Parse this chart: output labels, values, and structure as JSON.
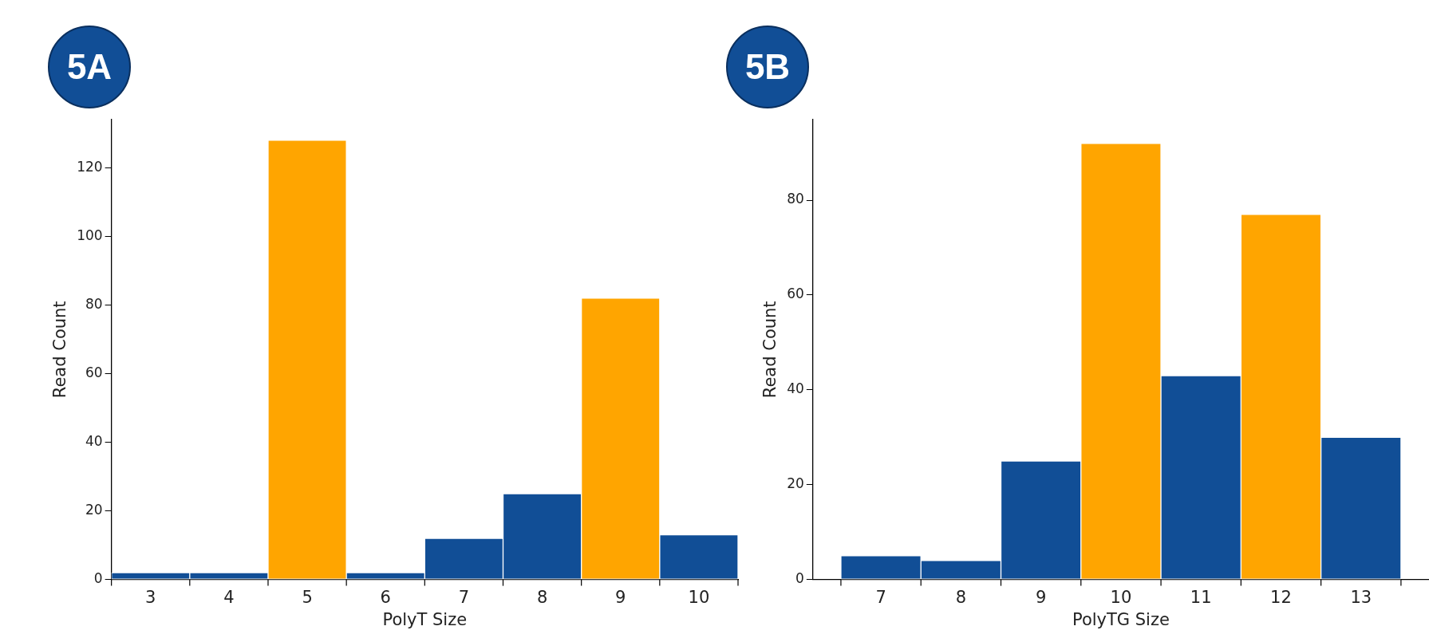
{
  "chart_data": [
    {
      "type": "histogram",
      "title": "5A",
      "xlabel": "PolyT Size",
      "ylabel": "Read Count",
      "bins": [
        2.5,
        3.5,
        4.5,
        5.5,
        6.5,
        7.5,
        8.5,
        9.5,
        10.5
      ],
      "values": [
        2,
        2,
        128,
        2,
        12,
        25,
        82,
        13
      ],
      "colors": [
        "#114e96",
        "#114e96",
        "#ffa500",
        "#114e96",
        "#114e96",
        "#114e96",
        "#ffa500",
        "#114e96"
      ],
      "xlim": [
        2.5,
        10.5
      ],
      "xticks": [
        {
          "value": 2.5,
          "label": null
        },
        3,
        {
          "value": 3.5,
          "label": null
        },
        4,
        {
          "value": 4.5,
          "label": null
        },
        5,
        {
          "value": 5.5,
          "label": null
        },
        6,
        {
          "value": 6.5,
          "label": null
        },
        7,
        {
          "value": 7.5,
          "label": null
        },
        8,
        {
          "value": 8.5,
          "label": null
        },
        9,
        {
          "value": 9.5,
          "label": null
        },
        10,
        {
          "value": 10.5,
          "label": null
        }
      ],
      "ylim": [
        0,
        134
      ],
      "yticks": [
        0,
        20,
        40,
        60,
        80,
        100,
        120
      ]
    },
    {
      "type": "histogram",
      "title": "5B",
      "xlabel": "PolyTG Size",
      "ylabel": "Read Count",
      "bins": [
        6.5,
        7.5,
        8.5,
        9.5,
        10.5,
        11.5,
        12.5,
        13.5
      ],
      "values": [
        5,
        4,
        25,
        92,
        43,
        77,
        30
      ],
      "colors": [
        "#114e96",
        "#114e96",
        "#114e96",
        "#ffa500",
        "#114e96",
        "#ffa500",
        "#114e96"
      ],
      "xlim": [
        6.15,
        13.85
      ],
      "xticks": [
        {
          "value": 6.5,
          "label": null
        },
        7,
        {
          "value": 7.5,
          "label": null
        },
        8,
        {
          "value": 8.5,
          "label": null
        },
        9,
        {
          "value": 9.5,
          "label": null
        },
        10,
        {
          "value": 10.5,
          "label": null
        },
        11,
        {
          "value": 11.5,
          "label": null
        },
        12,
        {
          "value": 12.5,
          "label": null
        },
        13,
        {
          "value": 13.5,
          "label": null
        }
      ],
      "ylim": [
        0,
        97
      ],
      "yticks": [
        0,
        20,
        40,
        60,
        80
      ]
    }
  ]
}
